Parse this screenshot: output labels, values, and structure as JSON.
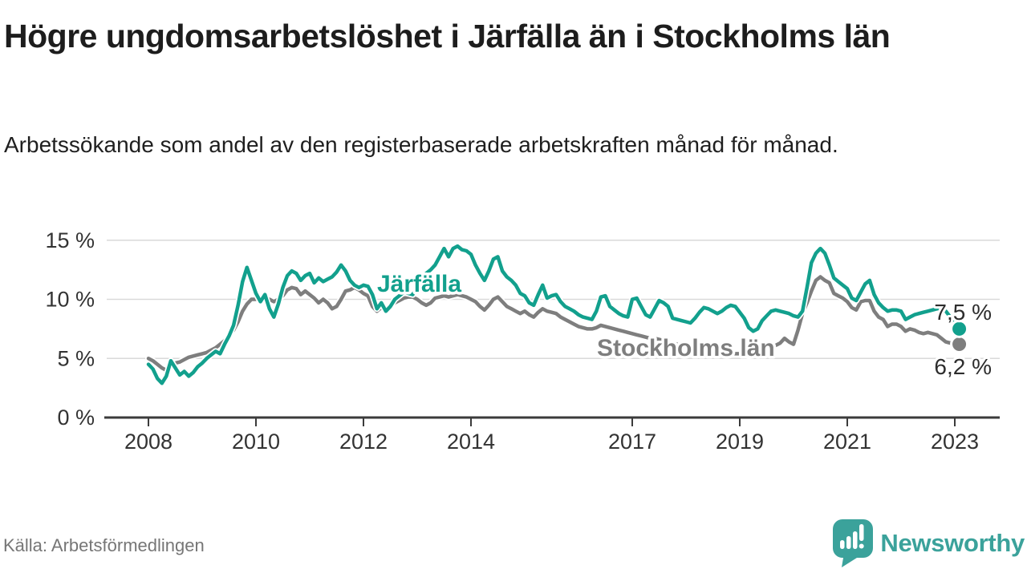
{
  "header": {
    "title": "Högre ungdomsarbetslöshet i Järfälla än i Stockholms län",
    "subtitle": "Arbetssökande som andel av den registerbaserade arbetskraften månad för månad."
  },
  "footer": {
    "source": "Källa: Arbetsförmedlingen",
    "brand": "Newsworthy",
    "brand_icon": "speech-bubble-bar-chart-icon"
  },
  "colors": {
    "jarfalla_teal": "#12a08d",
    "stockholm_gray": "#7e7e7e",
    "axis_dark": "#3b3b3b",
    "grid_light": "#d9d9d9",
    "tick_text": "#333333",
    "end_label_text": "#2d2d2d",
    "brand_teal": "#3ba29b",
    "title_text": "#1d1d1d",
    "source_text": "#767676"
  },
  "chart_data": {
    "type": "line",
    "title": "Högre ungdomsarbetslöshet i Järfälla än i Stockholms län",
    "subtitle": "Arbetssökande som andel av den registerbaserade arbetskraften månad för månad.",
    "x_unit": "month",
    "x_start": "2008-01",
    "x_end": "2023-02",
    "x_tick_years": [
      2008,
      2010,
      2012,
      2014,
      2017,
      2019,
      2021,
      2023
    ],
    "y_ticks": [
      {
        "value": 0,
        "label": "0 %"
      },
      {
        "value": 5,
        "label": "5 %"
      },
      {
        "value": 10,
        "label": "10 %"
      },
      {
        "value": 15,
        "label": "15 %"
      }
    ],
    "ylim": [
      0,
      16.5
    ],
    "grid": "horizontal",
    "legend_position": "inline-labels",
    "series": [
      {
        "name": "Järfälla",
        "color": "#12a08d",
        "end_label": "7,5 %",
        "end_value": 7.5,
        "values": [
          4.5,
          4.1,
          3.3,
          2.9,
          3.5,
          4.8,
          4.2,
          3.6,
          3.9,
          3.5,
          3.8,
          4.3,
          4.6,
          5.0,
          5.3,
          5.6,
          5.4,
          6.2,
          6.9,
          7.8,
          9.5,
          11.5,
          12.7,
          11.6,
          10.5,
          9.8,
          10.4,
          9.2,
          8.5,
          9.6,
          11.0,
          12.0,
          12.4,
          12.2,
          11.6,
          12.0,
          12.2,
          11.4,
          11.8,
          11.5,
          11.7,
          11.9,
          12.3,
          12.9,
          12.4,
          11.6,
          11.2,
          11.0,
          11.2,
          11.1,
          10.4,
          9.2,
          9.7,
          9.0,
          9.4,
          10.0,
          10.3,
          10.6,
          10.5,
          10.4,
          11.0,
          11.6,
          12.2,
          12.5,
          12.9,
          13.6,
          14.3,
          13.6,
          14.3,
          14.5,
          14.2,
          14.1,
          13.8,
          12.9,
          12.2,
          11.6,
          12.4,
          13.4,
          13.6,
          12.4,
          11.9,
          11.6,
          11.2,
          10.5,
          10.3,
          9.7,
          9.5,
          10.4,
          11.2,
          10.1,
          10.3,
          10.4,
          9.8,
          9.4,
          9.2,
          9.0,
          8.7,
          8.5,
          8.4,
          8.3,
          9.0,
          10.2,
          10.3,
          9.4,
          9.1,
          8.8,
          8.6,
          8.5,
          10.0,
          10.1,
          9.4,
          8.7,
          8.5,
          9.2,
          9.9,
          9.7,
          9.4,
          8.4,
          8.3,
          8.2,
          8.1,
          8.0,
          8.4,
          8.9,
          9.3,
          9.2,
          9.0,
          8.8,
          9.0,
          9.3,
          9.5,
          9.4,
          8.9,
          8.4,
          7.6,
          7.3,
          7.5,
          8.2,
          8.6,
          9.0,
          9.1,
          9.0,
          8.9,
          8.8,
          8.6,
          8.5,
          9.0,
          11.0,
          13.1,
          13.9,
          14.3,
          13.9,
          12.9,
          11.8,
          11.5,
          11.2,
          10.9,
          10.1,
          9.9,
          10.6,
          11.3,
          11.6,
          10.4,
          9.7,
          9.3,
          9.0,
          9.1,
          9.1,
          9.0,
          8.3,
          8.5,
          8.7,
          8.8,
          8.9,
          9.0,
          9.1,
          9.2,
          9.2,
          9.0,
          8.5,
          8.0,
          7.5
        ]
      },
      {
        "name": "Stockholms län",
        "color": "#7e7e7e",
        "end_label": "6,2 %",
        "end_value": 6.2,
        "values": [
          5.0,
          4.8,
          4.5,
          4.2,
          4.0,
          4.3,
          4.6,
          4.7,
          4.9,
          5.1,
          5.2,
          5.3,
          5.4,
          5.5,
          5.7,
          5.9,
          6.2,
          6.5,
          6.9,
          7.4,
          8.1,
          9.0,
          9.6,
          10.0,
          10.0,
          10.1,
          10.0,
          10.0,
          9.8,
          10.0,
          10.3,
          10.8,
          11.0,
          10.9,
          10.4,
          10.7,
          10.4,
          10.1,
          9.7,
          10.0,
          9.7,
          9.2,
          9.4,
          10.0,
          10.7,
          10.8,
          11.0,
          10.8,
          10.5,
          10.3,
          9.4,
          9.0,
          9.3,
          9.0,
          9.4,
          9.7,
          9.9,
          10.1,
          10.2,
          10.2,
          10.0,
          9.7,
          9.5,
          9.7,
          10.1,
          10.2,
          10.3,
          10.2,
          10.3,
          10.4,
          10.3,
          10.2,
          10.0,
          9.8,
          9.4,
          9.1,
          9.5,
          10.0,
          10.2,
          9.8,
          9.4,
          9.2,
          9.0,
          8.8,
          9.0,
          8.7,
          8.5,
          8.9,
          9.2,
          9.0,
          8.9,
          8.8,
          8.5,
          8.3,
          8.1,
          7.9,
          7.7,
          7.6,
          7.5,
          7.5,
          7.6,
          7.8,
          7.7,
          7.6,
          7.5,
          7.4,
          7.3,
          7.2,
          7.1,
          7.0,
          6.9,
          6.8,
          6.7,
          6.7,
          6.6,
          6.5,
          6.4,
          6.3,
          6.2,
          6.1,
          6.0,
          5.9,
          5.9,
          5.8,
          5.8,
          5.7,
          5.7,
          5.6,
          5.6,
          5.5,
          5.5,
          5.4,
          5.4,
          5.3,
          5.2,
          5.3,
          5.4,
          5.6,
          5.8,
          6.0,
          6.1,
          6.3,
          6.7,
          6.4,
          6.2,
          7.4,
          8.8,
          9.7,
          10.7,
          11.6,
          11.9,
          11.6,
          11.4,
          10.5,
          10.3,
          10.1,
          9.8,
          9.3,
          9.1,
          9.8,
          9.9,
          9.9,
          9.0,
          8.5,
          8.3,
          7.7,
          7.9,
          7.9,
          7.7,
          7.3,
          7.5,
          7.4,
          7.2,
          7.1,
          7.2,
          7.1,
          7.0,
          6.7,
          6.4,
          6.3,
          6.4,
          6.2
        ]
      }
    ]
  }
}
